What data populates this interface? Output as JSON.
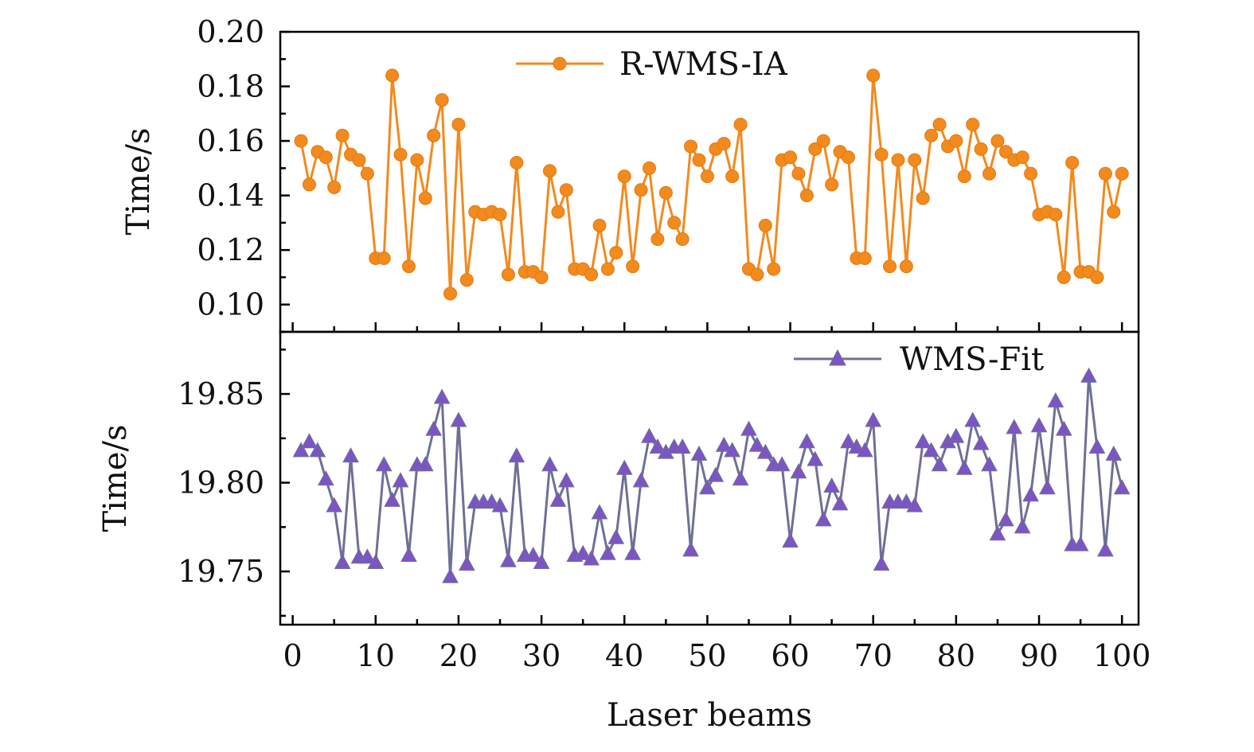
{
  "chart_data": [
    {
      "type": "line",
      "ylabel": "Time/s",
      "xlabel": "Laser beams",
      "xlim": [
        -1.5,
        102
      ],
      "ylim": [
        0.09,
        0.2
      ],
      "xticks": [
        0,
        10,
        20,
        30,
        40,
        50,
        60,
        70,
        80,
        90,
        100
      ],
      "yticks": [
        0.1,
        0.12,
        0.14,
        0.16,
        0.18,
        0.2
      ],
      "ytick_labels": [
        "0.10",
        "0.12",
        "0.14",
        "0.16",
        "0.18",
        "0.20"
      ],
      "legend_position": "top-center",
      "series": [
        {
          "name": "R-WMS-IA",
          "color": "#f28a1e",
          "marker": "circle",
          "x": [
            1,
            2,
            3,
            4,
            5,
            6,
            7,
            8,
            9,
            10,
            11,
            12,
            13,
            14,
            15,
            16,
            17,
            18,
            19,
            20,
            21,
            22,
            23,
            24,
            25,
            26,
            27,
            28,
            29,
            30,
            31,
            32,
            33,
            34,
            35,
            36,
            37,
            38,
            39,
            40,
            41,
            42,
            43,
            44,
            45,
            46,
            47,
            48,
            49,
            50,
            51,
            52,
            53,
            54,
            55,
            56,
            57,
            58,
            59,
            60,
            61,
            62,
            63,
            64,
            65,
            66,
            67,
            68,
            69,
            70,
            71,
            72,
            73,
            74,
            75,
            76,
            77,
            78,
            79,
            80,
            81,
            82,
            83,
            84,
            85,
            86,
            87,
            88,
            89,
            90,
            91,
            92,
            93,
            94,
            95,
            96,
            97,
            98,
            99,
            100
          ],
          "values": [
            0.16,
            0.144,
            0.156,
            0.154,
            0.143,
            0.162,
            0.155,
            0.153,
            0.148,
            0.117,
            0.117,
            0.184,
            0.155,
            0.114,
            0.153,
            0.139,
            0.162,
            0.175,
            0.104,
            0.166,
            0.109,
            0.134,
            0.133,
            0.134,
            0.133,
            0.111,
            0.152,
            0.112,
            0.112,
            0.11,
            0.149,
            0.134,
            0.142,
            0.113,
            0.113,
            0.111,
            0.129,
            0.113,
            0.119,
            0.147,
            0.114,
            0.142,
            0.15,
            0.124,
            0.141,
            0.13,
            0.124,
            0.158,
            0.153,
            0.147,
            0.157,
            0.159,
            0.147,
            0.166,
            0.113,
            0.111,
            0.129,
            0.113,
            0.153,
            0.154,
            0.148,
            0.14,
            0.157,
            0.16,
            0.144,
            0.156,
            0.154,
            0.117,
            0.117,
            0.184,
            0.155,
            0.114,
            0.153,
            0.114,
            0.153,
            0.139,
            0.162,
            0.166,
            0.158,
            0.16,
            0.147,
            0.166,
            0.157,
            0.148,
            0.16,
            0.156,
            0.153,
            0.154,
            0.148,
            0.133,
            0.134,
            0.133,
            0.11,
            0.152,
            0.112,
            0.112,
            0.11,
            0.148,
            0.134,
            0.148
          ]
        }
      ]
    },
    {
      "type": "line",
      "ylabel": "Time/s",
      "xlabel": "Laser beams",
      "xlim": [
        -1.5,
        102
      ],
      "ylim": [
        19.72,
        19.885
      ],
      "xticks": [
        0,
        10,
        20,
        30,
        40,
        50,
        60,
        70,
        80,
        90,
        100
      ],
      "xtick_labels": [
        "0",
        "10",
        "20",
        "30",
        "40",
        "50",
        "60",
        "70",
        "80",
        "90",
        "100"
      ],
      "yticks": [
        19.75,
        19.8,
        19.85
      ],
      "ytick_labels": [
        "19.75",
        "19.80",
        "19.85"
      ],
      "legend_position": "top-right",
      "series": [
        {
          "name": "WMS-Fit",
          "color": "#6f6f96",
          "marker_color": "#7b55c4",
          "marker": "triangle",
          "x": [
            1,
            2,
            3,
            4,
            5,
            6,
            7,
            8,
            9,
            10,
            11,
            12,
            13,
            14,
            15,
            16,
            17,
            18,
            19,
            20,
            21,
            22,
            23,
            24,
            25,
            26,
            27,
            28,
            29,
            30,
            31,
            32,
            33,
            34,
            35,
            36,
            37,
            38,
            39,
            40,
            41,
            42,
            43,
            44,
            45,
            46,
            47,
            48,
            49,
            50,
            51,
            52,
            53,
            54,
            55,
            56,
            57,
            58,
            59,
            60,
            61,
            62,
            63,
            64,
            65,
            66,
            67,
            68,
            69,
            70,
            71,
            72,
            73,
            74,
            75,
            76,
            77,
            78,
            79,
            80,
            81,
            82,
            83,
            84,
            85,
            86,
            87,
            88,
            89,
            90,
            91,
            92,
            93,
            94,
            95,
            96,
            97,
            98,
            99,
            100
          ],
          "values": [
            19.818,
            19.823,
            19.818,
            19.802,
            19.787,
            19.755,
            19.815,
            19.758,
            19.758,
            19.755,
            19.81,
            19.79,
            19.801,
            19.759,
            19.81,
            19.81,
            19.83,
            19.848,
            19.747,
            19.835,
            19.754,
            19.789,
            19.789,
            19.789,
            19.787,
            19.756,
            19.815,
            19.759,
            19.759,
            19.755,
            19.81,
            19.79,
            19.801,
            19.759,
            19.76,
            19.757,
            19.783,
            19.76,
            19.769,
            19.808,
            19.76,
            19.801,
            19.826,
            19.82,
            19.817,
            19.82,
            19.82,
            19.762,
            19.816,
            19.797,
            19.804,
            19.821,
            19.818,
            19.802,
            19.83,
            19.821,
            19.817,
            19.81,
            19.81,
            19.767,
            19.806,
            19.823,
            19.813,
            19.779,
            19.798,
            19.788,
            19.823,
            19.82,
            19.818,
            19.835,
            19.754,
            19.789,
            19.789,
            19.789,
            19.787,
            19.823,
            19.818,
            19.81,
            19.823,
            19.826,
            19.808,
            19.835,
            19.822,
            19.81,
            19.771,
            19.779,
            19.831,
            19.775,
            19.793,
            19.832,
            19.797,
            19.846,
            19.83,
            19.765,
            19.765,
            19.86,
            19.82,
            19.762,
            19.816,
            19.797
          ]
        }
      ]
    }
  ]
}
